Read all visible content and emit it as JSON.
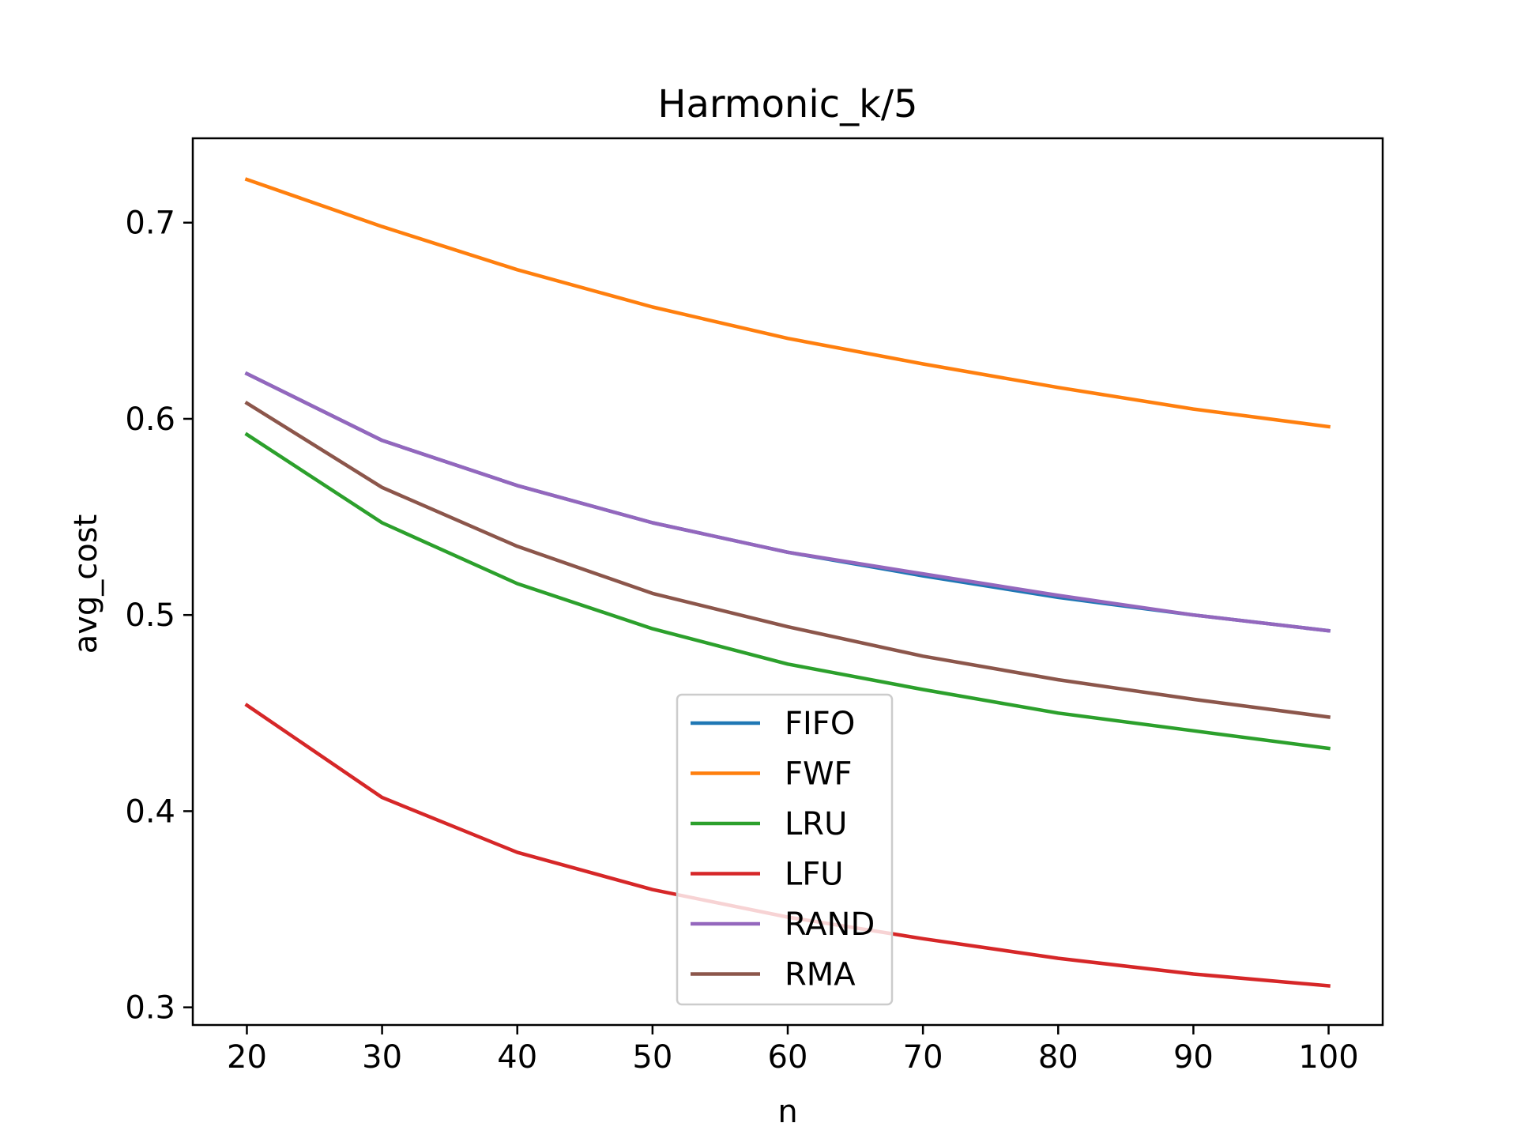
{
  "chart_data": {
    "type": "line",
    "title": "Harmonic_k/5",
    "xlabel": "n",
    "ylabel": "avg_cost",
    "x": [
      20,
      30,
      40,
      50,
      60,
      70,
      80,
      90,
      100
    ],
    "x_ticks": [
      "20",
      "30",
      "40",
      "50",
      "60",
      "70",
      "80",
      "90",
      "100"
    ],
    "y_ticks": [
      "0.3",
      "0.4",
      "0.5",
      "0.6",
      "0.7"
    ],
    "y_tick_values": [
      0.3,
      0.4,
      0.5,
      0.6,
      0.7
    ],
    "xlim": [
      16,
      104
    ],
    "ylim": [
      0.291,
      0.743
    ],
    "grid": false,
    "legend_position": "lower-center",
    "series": [
      {
        "name": "FIFO",
        "color": "#1f77b4",
        "values": [
          0.623,
          0.589,
          0.566,
          0.547,
          0.532,
          0.52,
          0.509,
          0.5,
          0.492
        ]
      },
      {
        "name": "FWF",
        "color": "#ff7f0e",
        "values": [
          0.722,
          0.698,
          0.676,
          0.657,
          0.641,
          0.628,
          0.616,
          0.605,
          0.596
        ]
      },
      {
        "name": "LRU",
        "color": "#2ca02c",
        "values": [
          0.592,
          0.547,
          0.516,
          0.493,
          0.475,
          0.462,
          0.45,
          0.441,
          0.432
        ]
      },
      {
        "name": "LFU",
        "color": "#d62728",
        "values": [
          0.454,
          0.407,
          0.379,
          0.36,
          0.346,
          0.335,
          0.325,
          0.317,
          0.311
        ]
      },
      {
        "name": "RAND",
        "color": "#9467bd",
        "values": [
          0.623,
          0.589,
          0.566,
          0.547,
          0.532,
          0.521,
          0.51,
          0.5,
          0.492
        ]
      },
      {
        "name": "RMA",
        "color": "#8c564b",
        "values": [
          0.608,
          0.565,
          0.535,
          0.511,
          0.494,
          0.479,
          0.467,
          0.457,
          0.448
        ]
      }
    ]
  }
}
